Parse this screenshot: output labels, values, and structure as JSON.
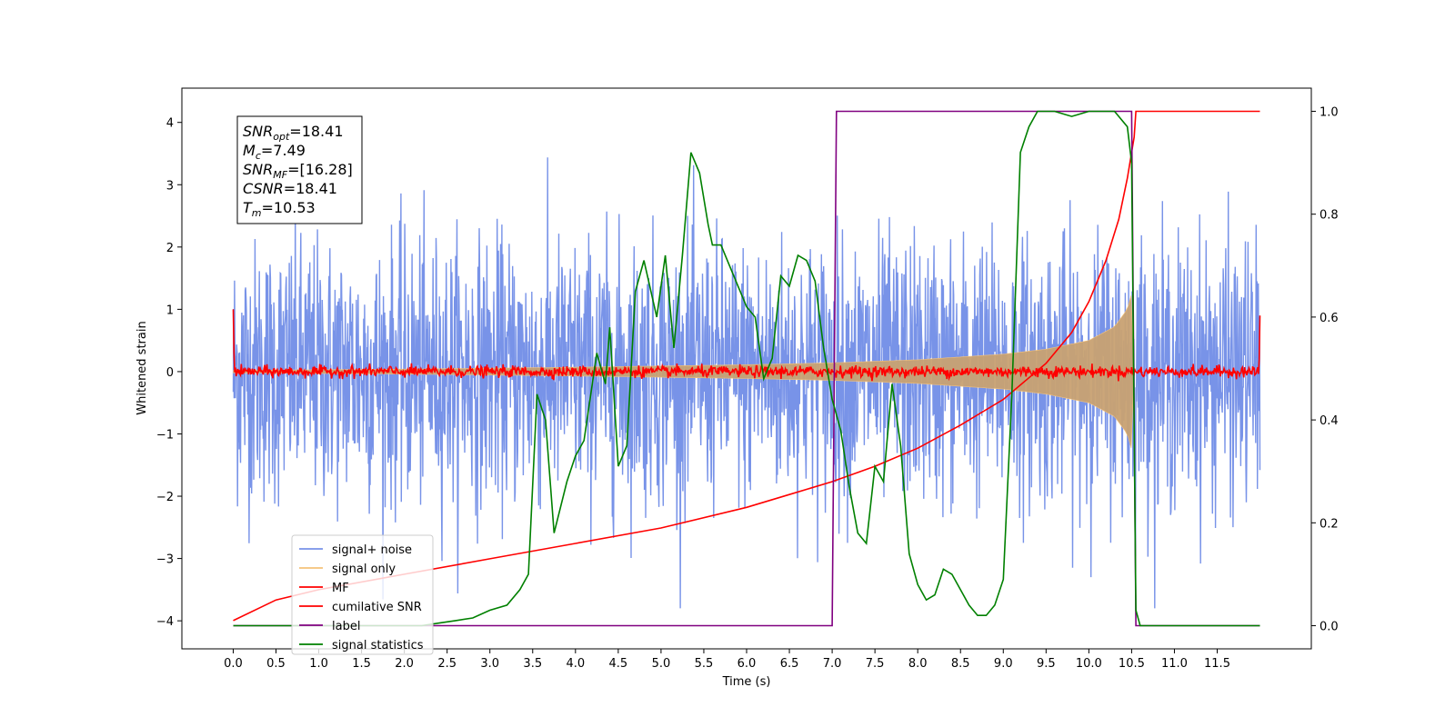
{
  "chart_data": {
    "type": "line",
    "xlabel": "Time (s)",
    "ylabel": "Whitened strain",
    "xlim": [
      -0.6,
      12.6
    ],
    "ylim": [
      -4.45,
      4.55
    ],
    "y2lim": [
      -0.045,
      1.045
    ],
    "grid": false,
    "legend_position": "lower-left",
    "x_ticks": [
      0.0,
      0.5,
      1.0,
      1.5,
      2.0,
      2.5,
      3.0,
      3.5,
      4.0,
      4.5,
      5.0,
      5.5,
      6.0,
      6.5,
      7.0,
      7.5,
      8.0,
      8.5,
      9.0,
      9.5,
      10.0,
      10.5,
      11.0,
      11.5
    ],
    "x_tick_labels": [
      "0.0",
      "0.5",
      "1.0",
      "1.5",
      "2.0",
      "2.5",
      "3.0",
      "3.5",
      "4.0",
      "4.5",
      "5.0",
      "5.5",
      "6.0",
      "6.5",
      "7.0",
      "7.5",
      "8.0",
      "8.5",
      "9.0",
      "9.5",
      "10.0",
      "10.5",
      "11.0",
      "11.5"
    ],
    "y_ticks": [
      4,
      3,
      2,
      1,
      0,
      -1,
      -2,
      -3,
      -4
    ],
    "y_tick_labels": [
      "4",
      "3",
      "2",
      "1",
      "0",
      "−1",
      "−2",
      "−3",
      "−4"
    ],
    "y2_ticks": [
      1.0,
      0.8,
      0.6,
      0.4,
      0.2,
      0.0
    ],
    "y2_tick_labels": [
      "1.0",
      "0.8",
      "0.6",
      "0.4",
      "0.2",
      "0.0"
    ],
    "annotation": {
      "lines": [
        {
          "sym": "SNR",
          "sub": "opt",
          "val": "=18.41"
        },
        {
          "sym": "M",
          "sub": "c",
          "val": "=7.49"
        },
        {
          "sym": "SNR",
          "sub": "MF",
          "val": "=[16.28]"
        },
        {
          "sym": "CSNR",
          "sub": "",
          "val": "=18.41"
        },
        {
          "sym": "T",
          "sub": "m",
          "val": "=10.53"
        }
      ]
    },
    "series": [
      {
        "name": "signal+ noise",
        "color": "#7893e8",
        "axis": "left",
        "description_range": [
          -3.6,
          3.6
        ],
        "x_span": [
          0.0,
          12.0
        ]
      },
      {
        "name": "signal only",
        "color": "#f5c27a",
        "axis": "left",
        "envelope": {
          "x": [
            0.0,
            2.0,
            4.0,
            6.0,
            7.0,
            8.0,
            9.0,
            9.5,
            10.0,
            10.3,
            10.45,
            10.5,
            10.53
          ],
          "amp": [
            0.02,
            0.04,
            0.07,
            0.11,
            0.14,
            0.19,
            0.28,
            0.36,
            0.5,
            0.72,
            1.0,
            1.25,
            0.0
          ]
        }
      },
      {
        "name": "MF",
        "color": "#ff0000",
        "axis": "left",
        "baseline": 0.0,
        "noise_amp": 0.1,
        "x_span": [
          0.0,
          12.0
        ]
      },
      {
        "name": "cumilative SNR",
        "color": "#ff0000",
        "axis": "right",
        "points": [
          [
            0.0,
            0.01
          ],
          [
            0.5,
            0.05
          ],
          [
            1.0,
            0.07
          ],
          [
            2.0,
            0.1
          ],
          [
            3.0,
            0.13
          ],
          [
            4.0,
            0.16
          ],
          [
            5.0,
            0.19
          ],
          [
            6.0,
            0.23
          ],
          [
            6.5,
            0.255
          ],
          [
            7.0,
            0.28
          ],
          [
            7.5,
            0.31
          ],
          [
            8.0,
            0.345
          ],
          [
            8.5,
            0.39
          ],
          [
            9.0,
            0.44
          ],
          [
            9.5,
            0.51
          ],
          [
            9.8,
            0.57
          ],
          [
            10.0,
            0.63
          ],
          [
            10.2,
            0.71
          ],
          [
            10.35,
            0.79
          ],
          [
            10.45,
            0.87
          ],
          [
            10.53,
            0.95
          ],
          [
            10.55,
            1.0
          ],
          [
            12.0,
            1.0
          ]
        ]
      },
      {
        "name": "label",
        "color": "#800080",
        "axis": "right",
        "points": [
          [
            0.0,
            0.0
          ],
          [
            7.0,
            0.0
          ],
          [
            7.05,
            1.0
          ],
          [
            10.5,
            1.0
          ],
          [
            10.55,
            0.0
          ],
          [
            12.0,
            0.0
          ]
        ]
      },
      {
        "name": "signal statistics",
        "color": "#008000",
        "axis": "right",
        "points": [
          [
            0.0,
            0.0
          ],
          [
            2.2,
            0.0
          ],
          [
            2.4,
            0.005
          ],
          [
            2.6,
            0.01
          ],
          [
            2.8,
            0.015
          ],
          [
            3.0,
            0.03
          ],
          [
            3.2,
            0.04
          ],
          [
            3.35,
            0.07
          ],
          [
            3.45,
            0.1
          ],
          [
            3.55,
            0.45
          ],
          [
            3.65,
            0.4
          ],
          [
            3.75,
            0.18
          ],
          [
            3.9,
            0.28
          ],
          [
            4.0,
            0.33
          ],
          [
            4.1,
            0.36
          ],
          [
            4.25,
            0.53
          ],
          [
            4.35,
            0.47
          ],
          [
            4.4,
            0.58
          ],
          [
            4.5,
            0.31
          ],
          [
            4.6,
            0.35
          ],
          [
            4.7,
            0.65
          ],
          [
            4.8,
            0.71
          ],
          [
            4.95,
            0.6
          ],
          [
            5.05,
            0.72
          ],
          [
            5.15,
            0.54
          ],
          [
            5.25,
            0.72
          ],
          [
            5.35,
            0.92
          ],
          [
            5.45,
            0.88
          ],
          [
            5.55,
            0.78
          ],
          [
            5.6,
            0.74
          ],
          [
            5.7,
            0.74
          ],
          [
            5.8,
            0.7
          ],
          [
            5.9,
            0.66
          ],
          [
            6.0,
            0.62
          ],
          [
            6.1,
            0.6
          ],
          [
            6.2,
            0.48
          ],
          [
            6.3,
            0.52
          ],
          [
            6.4,
            0.68
          ],
          [
            6.5,
            0.66
          ],
          [
            6.6,
            0.72
          ],
          [
            6.7,
            0.71
          ],
          [
            6.8,
            0.67
          ],
          [
            6.9,
            0.54
          ],
          [
            7.0,
            0.44
          ],
          [
            7.1,
            0.38
          ],
          [
            7.2,
            0.27
          ],
          [
            7.3,
            0.18
          ],
          [
            7.4,
            0.16
          ],
          [
            7.5,
            0.31
          ],
          [
            7.6,
            0.28
          ],
          [
            7.7,
            0.47
          ],
          [
            7.8,
            0.35
          ],
          [
            7.9,
            0.14
          ],
          [
            8.0,
            0.08
          ],
          [
            8.1,
            0.05
          ],
          [
            8.2,
            0.06
          ],
          [
            8.3,
            0.11
          ],
          [
            8.4,
            0.1
          ],
          [
            8.5,
            0.07
          ],
          [
            8.6,
            0.04
          ],
          [
            8.7,
            0.02
          ],
          [
            8.8,
            0.02
          ],
          [
            8.9,
            0.04
          ],
          [
            9.0,
            0.09
          ],
          [
            9.1,
            0.45
          ],
          [
            9.2,
            0.92
          ],
          [
            9.3,
            0.97
          ],
          [
            9.4,
            1.0
          ],
          [
            9.6,
            1.0
          ],
          [
            9.8,
            0.99
          ],
          [
            10.0,
            1.0
          ],
          [
            10.3,
            1.0
          ],
          [
            10.45,
            0.97
          ],
          [
            10.5,
            0.9
          ],
          [
            10.55,
            0.03
          ],
          [
            10.6,
            0.0
          ],
          [
            12.0,
            0.0
          ]
        ]
      }
    ]
  }
}
